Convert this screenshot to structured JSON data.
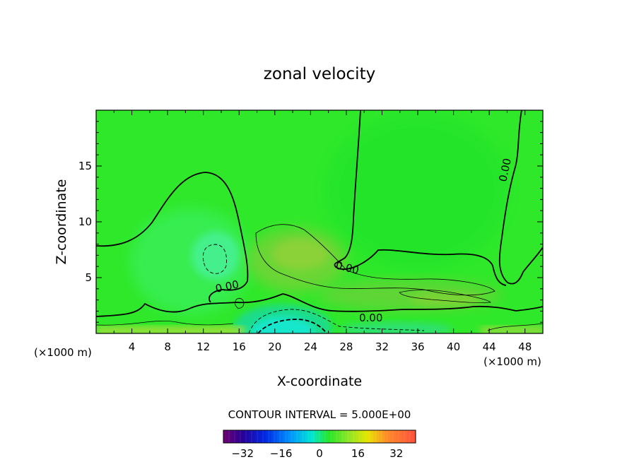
{
  "chart_data": {
    "type": "heatmap",
    "title": "zonal velocity",
    "xlabel": "X-coordinate",
    "ylabel": "Z-coordinate",
    "x_unit_left": "(×1000 m)",
    "x_unit_right": "(×1000 m)",
    "xlim": [
      0,
      50
    ],
    "ylim": [
      0,
      20
    ],
    "x_ticks": [
      4,
      8,
      12,
      16,
      20,
      24,
      28,
      32,
      36,
      40,
      44,
      48
    ],
    "y_ticks": [
      5,
      10,
      15
    ],
    "contour_interval_text": "CONTOUR INTERVAL = 5.000E+00",
    "contour_labels": [
      "0.00",
      "0.00",
      "0.00",
      "0.00"
    ],
    "colorbar": {
      "range": [
        -40,
        40
      ],
      "ticks": [
        -32,
        -16,
        0,
        16,
        32
      ],
      "tick_labels": [
        "−32",
        "−16",
        "0",
        "16",
        "32"
      ]
    },
    "field_description_values": {
      "background": 0,
      "jet_max_near_x21_z6": 8,
      "low_level_min_near_x22_z1": -15,
      "weak_min_near_x13_z7": -6,
      "surface_positive_strip": 5
    }
  }
}
